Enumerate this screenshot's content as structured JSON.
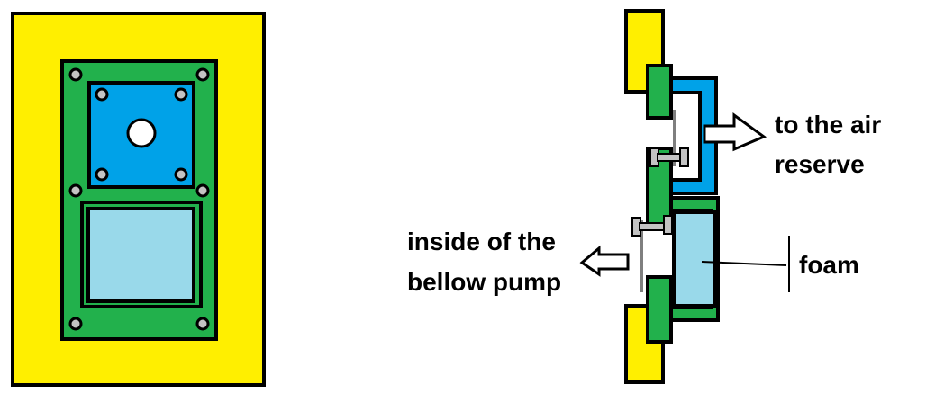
{
  "colors": {
    "frame": "#ffef00",
    "board": "#22b14c",
    "plate": "#00a2e8",
    "foam": "#99d9ea",
    "screw": "#c3c3c3",
    "rod": "#7f7f7f",
    "outline": "#000000",
    "arrow_fill": "#ffffff"
  },
  "labels": {
    "air_reserve_line1": "to the air",
    "air_reserve_line2": "reserve",
    "bellow_line1": "inside of the",
    "bellow_line2": "bellow pump",
    "foam": "foam"
  }
}
